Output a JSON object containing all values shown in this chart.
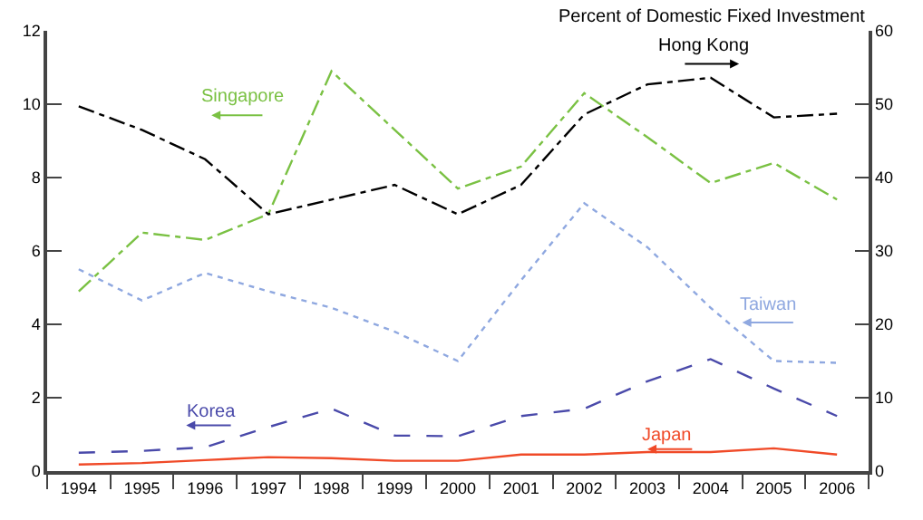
{
  "chart_data": {
    "type": "line",
    "y2label": "Percent of Domestic Fixed Investment",
    "categories": [
      "1994",
      "1995",
      "1996",
      "1997",
      "1998",
      "1999",
      "2000",
      "2001",
      "2002",
      "2003",
      "2004",
      "2005",
      "2006"
    ],
    "ylim": [
      0,
      12
    ],
    "yticks": [
      0,
      2,
      4,
      6,
      8,
      10,
      12
    ],
    "y2lim": [
      0,
      60
    ],
    "y2ticks": [
      0,
      10,
      20,
      30,
      40,
      50,
      60
    ],
    "legend": false,
    "marker": "none",
    "series": [
      {
        "name": "Hong Kong",
        "color": "#000000",
        "axis": "y2",
        "line_style": "dashdot",
        "values": [
          49.7,
          46.5,
          42.5,
          35,
          37,
          39,
          35,
          39,
          48.6,
          52.7,
          53.6,
          48.2,
          48.7
        ]
      },
      {
        "name": "Singapore",
        "color": "#7ac143",
        "line_style": "dashdot",
        "values": [
          4.9,
          6.5,
          6.3,
          7.0,
          10.9,
          9.3,
          7.7,
          8.3,
          10.3,
          9.1,
          7.85,
          8.4,
          7.4
        ]
      },
      {
        "name": "Taiwan",
        "color": "#8fa8e0",
        "line_style": "dotted",
        "values": [
          5.5,
          4.65,
          5.4,
          4.9,
          4.45,
          3.8,
          3.0,
          5.2,
          7.3,
          6.1,
          4.45,
          3.0,
          2.95
        ]
      },
      {
        "name": "Korea",
        "color": "#4a4aaa",
        "line_style": "dashed",
        "values": [
          0.5,
          0.55,
          0.65,
          1.2,
          1.7,
          0.97,
          0.95,
          1.5,
          1.7,
          2.45,
          3.05,
          2.25,
          1.5
        ]
      },
      {
        "name": "Japan",
        "color": "#f04a28",
        "line_style": "solid",
        "values": [
          0.18,
          0.22,
          0.3,
          0.38,
          0.35,
          0.28,
          0.28,
          0.45,
          0.45,
          0.52,
          0.52,
          0.62,
          0.45
        ]
      }
    ]
  }
}
